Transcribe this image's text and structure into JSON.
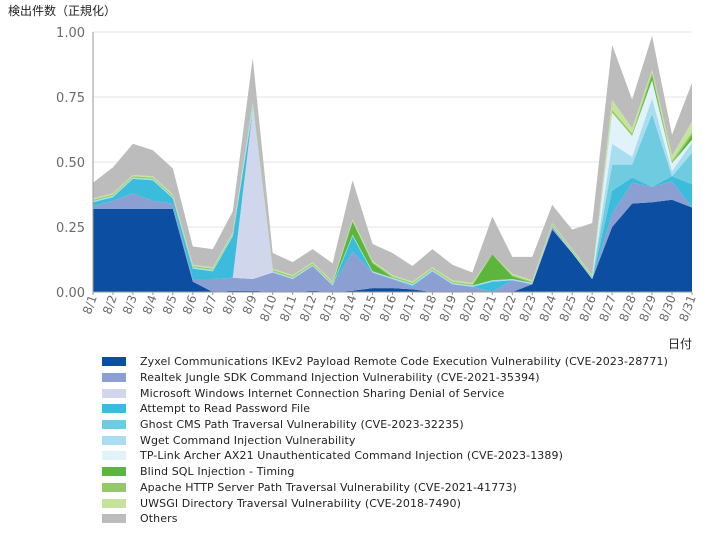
{
  "chart_data": {
    "type": "area",
    "stacked": true,
    "ylabel": "検出件数（正規化）",
    "xlabel": "日付",
    "ylim": [
      0,
      1.0
    ],
    "yticks": [
      "0.00",
      "0.25",
      "0.50",
      "0.75",
      "1.00"
    ],
    "grid": "horizontal",
    "legend_position": "bottom",
    "categories": [
      "8/1",
      "8/2",
      "8/3",
      "8/4",
      "8/5",
      "8/6",
      "8/7",
      "8/8",
      "8/9",
      "8/10",
      "8/11",
      "8/12",
      "8/13",
      "8/14",
      "8/15",
      "8/16",
      "8/17",
      "8/18",
      "8/19",
      "8/20",
      "8/21",
      "8/22",
      "8/23",
      "8/24",
      "8/25",
      "8/26",
      "8/27",
      "8/28",
      "8/29",
      "8/30",
      "8/31"
    ],
    "series": [
      {
        "name": "Zyxel Communications IKEv2 Payload Remote Code Execution Vulnerability (CVE-2023-28771)",
        "color": "#0b4ea2",
        "values": [
          0.32,
          0.32,
          0.32,
          0.32,
          0.32,
          0.04,
          0.0,
          0.005,
          0.005,
          0.0,
          0.0,
          0.005,
          0.0,
          0.005,
          0.015,
          0.015,
          0.01,
          0.0,
          0.0,
          0.0,
          0.0,
          0.0,
          0.03,
          0.24,
          0.15,
          0.05,
          0.25,
          0.34,
          0.345,
          0.355,
          0.325
        ]
      },
      {
        "name": "Realtek Jungle SDK Command Injection Vulnerability (CVE-2021-35394)",
        "color": "#8b9fd3",
        "values": [
          0.01,
          0.03,
          0.06,
          0.03,
          0.02,
          0.01,
          0.05,
          0.05,
          0.045,
          0.075,
          0.05,
          0.095,
          0.025,
          0.15,
          0.06,
          0.035,
          0.01,
          0.08,
          0.03,
          0.02,
          0.0,
          0.045,
          0.0,
          0.01,
          0.0,
          0.0,
          0.05,
          0.08,
          0.06,
          0.07,
          0.0
        ]
      },
      {
        "name": "Microsoft Windows Internet Connection Sharing Denial of Service",
        "color": "#d0d6ec",
        "values": [
          0.0,
          0.0,
          0.0,
          0.0,
          0.0,
          0.0,
          0.0,
          0.0,
          0.65,
          0.0,
          0.0,
          0.0,
          0.0,
          0.0,
          0.0,
          0.0,
          0.0,
          0.0,
          0.0,
          0.0,
          0.0,
          0.0,
          0.0,
          0.0,
          0.0,
          0.0,
          0.0,
          0.0,
          0.0,
          0.0,
          0.0
        ]
      },
      {
        "name": "Attempt to Read Password File",
        "color": "#3cbcdc",
        "values": [
          0.015,
          0.015,
          0.055,
          0.08,
          0.02,
          0.04,
          0.03,
          0.16,
          0.0,
          0.0,
          0.0,
          0.0,
          0.0,
          0.06,
          0.0,
          0.0,
          0.005,
          0.0,
          0.0,
          0.0,
          0.04,
          0.0,
          0.0,
          0.0,
          0.0,
          0.0,
          0.09,
          0.02,
          0.0,
          0.02,
          0.09
        ]
      },
      {
        "name": "Ghost CMS Path Traversal Vulnerability (CVE-2023-32235)",
        "color": "#6fcbdf",
        "values": [
          0.0,
          0.0,
          0.0,
          0.0,
          0.0,
          0.0,
          0.0,
          0.0,
          0.0,
          0.0,
          0.0,
          0.0,
          0.0,
          0.0,
          0.0,
          0.0,
          0.0,
          0.0,
          0.0,
          0.0,
          0.0,
          0.0,
          0.0,
          0.0,
          0.0,
          0.0,
          0.1,
          0.05,
          0.28,
          0.0,
          0.12
        ]
      },
      {
        "name": "Wget Command Injection Vulnerability",
        "color": "#a9def0",
        "values": [
          0.005,
          0.005,
          0.005,
          0.005,
          0.005,
          0.005,
          0.005,
          0.005,
          0.02,
          0.005,
          0.005,
          0.005,
          0.005,
          0.005,
          0.005,
          0.005,
          0.005,
          0.005,
          0.005,
          0.005,
          0.005,
          0.005,
          0.005,
          0.005,
          0.005,
          0.005,
          0.08,
          0.03,
          0.06,
          0.02,
          0.04
        ]
      },
      {
        "name": "TP-Link Archer AX21 Unauthenticated Command Injection (CVE-2023-1389)",
        "color": "#e1f2fa",
        "values": [
          0.0,
          0.0,
          0.0,
          0.0,
          0.0,
          0.0,
          0.0,
          0.0,
          0.0,
          0.0,
          0.0,
          0.0,
          0.0,
          0.0,
          0.0,
          0.0,
          0.0,
          0.0,
          0.0,
          0.0,
          0.0,
          0.0,
          0.0,
          0.0,
          0.0,
          0.0,
          0.12,
          0.08,
          0.07,
          0.03,
          0.01
        ]
      },
      {
        "name": "Blind SQL Injection - Timing",
        "color": "#5db63c",
        "values": [
          0.0,
          0.0,
          0.0,
          0.0,
          0.0,
          0.0,
          0.0,
          0.0,
          0.0,
          0.0,
          0.0,
          0.0,
          0.0,
          0.05,
          0.03,
          0.0,
          0.0,
          0.0,
          0.0,
          0.0,
          0.1,
          0.01,
          0.0,
          0.0,
          0.0,
          0.0,
          0.0,
          0.0,
          0.02,
          0.0,
          0.02
        ]
      },
      {
        "name": "Apache HTTP Server Path Traversal Vulnerability (CVE-2021-41773)",
        "color": "#94c963",
        "values": [
          0.005,
          0.005,
          0.005,
          0.005,
          0.005,
          0.005,
          0.005,
          0.005,
          0.005,
          0.005,
          0.005,
          0.005,
          0.005,
          0.005,
          0.005,
          0.005,
          0.005,
          0.005,
          0.005,
          0.005,
          0.0,
          0.005,
          0.005,
          0.005,
          0.005,
          0.005,
          0.01,
          0.01,
          0.01,
          0.01,
          0.01
        ]
      },
      {
        "name": "UWSGI Directory Traversal Vulnerability (CVE-2018-7490)",
        "color": "#c6e39e",
        "values": [
          0.005,
          0.005,
          0.005,
          0.005,
          0.005,
          0.005,
          0.005,
          0.005,
          0.005,
          0.005,
          0.005,
          0.005,
          0.005,
          0.005,
          0.005,
          0.005,
          0.005,
          0.005,
          0.005,
          0.005,
          0.0,
          0.005,
          0.005,
          0.005,
          0.005,
          0.005,
          0.04,
          0.02,
          0.01,
          0.02,
          0.04
        ]
      },
      {
        "name": "Others",
        "color": "#bcbcbc",
        "values": [
          0.06,
          0.1,
          0.12,
          0.1,
          0.1,
          0.07,
          0.07,
          0.08,
          0.17,
          0.06,
          0.05,
          0.05,
          0.07,
          0.15,
          0.065,
          0.085,
          0.06,
          0.07,
          0.06,
          0.04,
          0.145,
          0.065,
          0.09,
          0.07,
          0.075,
          0.2,
          0.21,
          0.11,
          0.13,
          0.08,
          0.15
        ]
      }
    ]
  },
  "colors": {
    "axis": "#9a9a9a",
    "grid": "#e4e4e4",
    "tick_text": "#6b6b6b",
    "title_text": "#222222"
  }
}
